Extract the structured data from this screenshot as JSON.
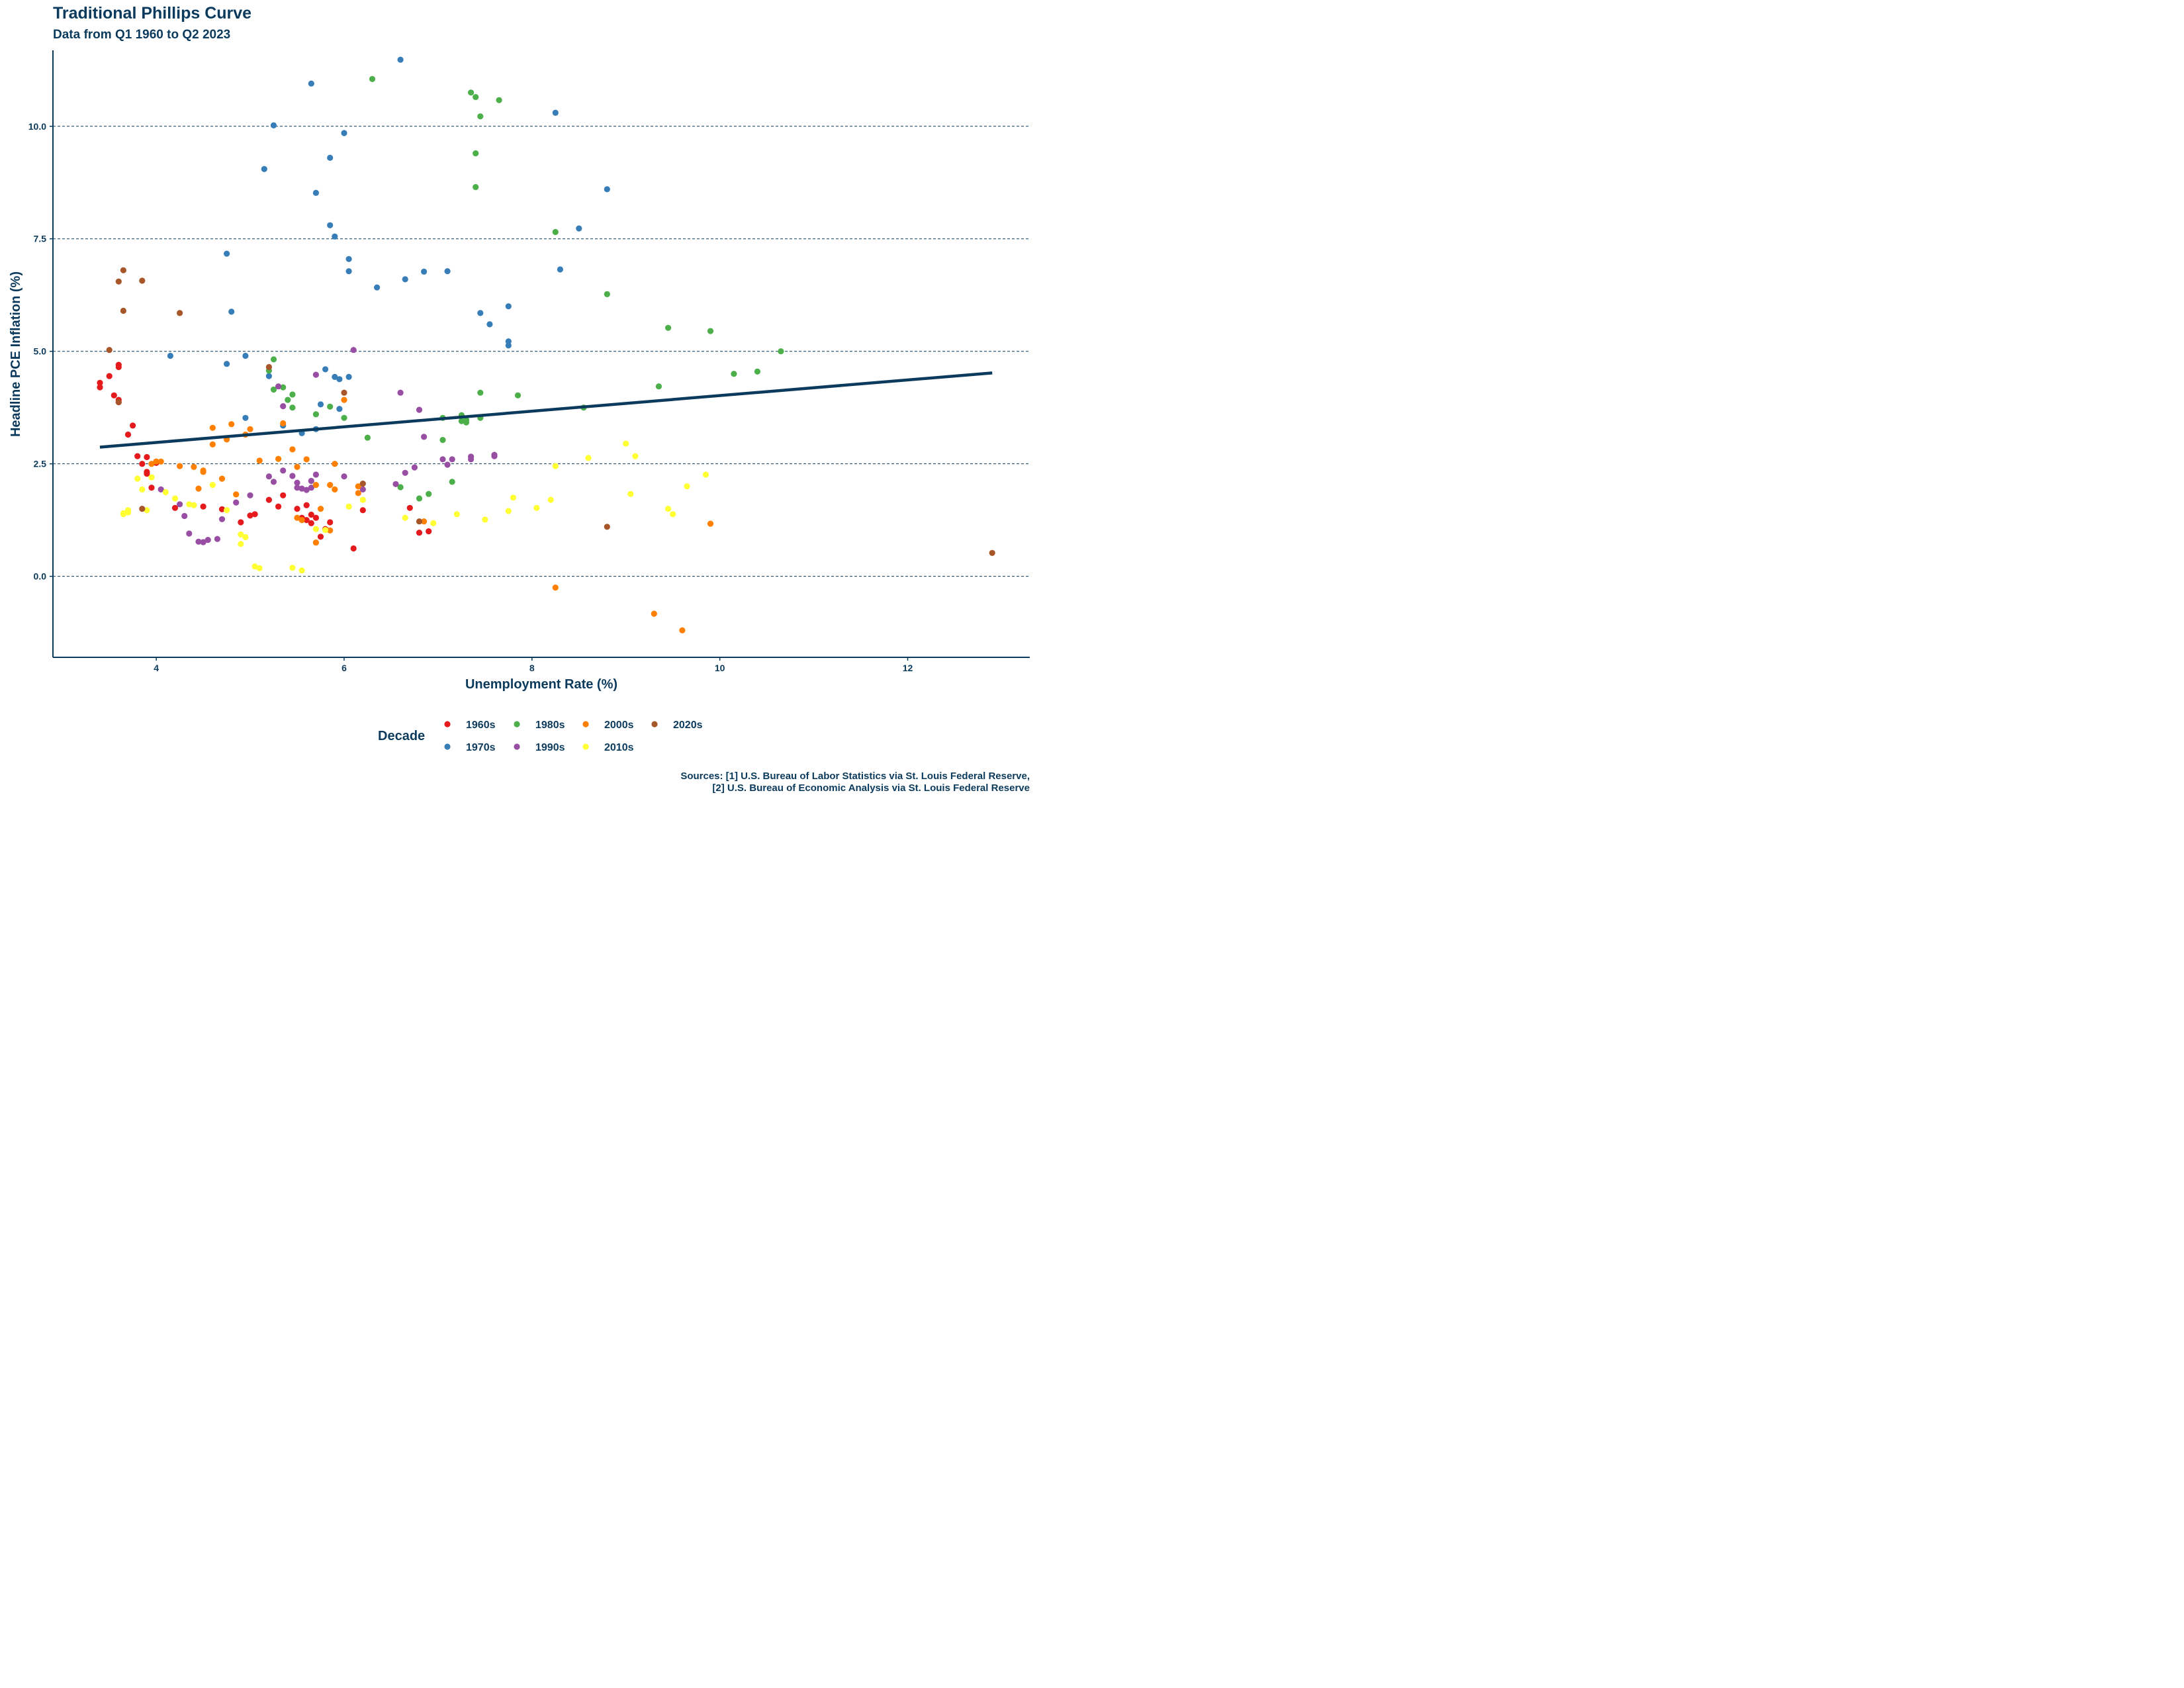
{
  "chart_data": {
    "type": "scatter",
    "title": "Traditional Phillips Curve",
    "subtitle": "Data from Q1 1960 to Q2 2023",
    "xlabel": "Unemployment Rate (%)",
    "ylabel": "Headline PCE Inflation (%)",
    "xlim": [
      2.9,
      13.3
    ],
    "ylim": [
      -1.8,
      12.1
    ],
    "xticks": [
      4,
      6,
      8,
      10,
      12
    ],
    "xtick_labels": [
      "4",
      "6",
      "8",
      "10",
      "12"
    ],
    "yticks": [
      0,
      2.5,
      5,
      7.5,
      10
    ],
    "ytick_labels": [
      "0.0",
      "2.5",
      "5.0",
      "7.5",
      "10.0"
    ],
    "grid": "horizontal dashed at major y ticks",
    "legend": {
      "title": "Decade",
      "position": "bottom"
    },
    "trend_line": {
      "x": [
        3.4,
        12.9
      ],
      "y": [
        2.87,
        4.52
      ],
      "color": "#0b3a5c"
    },
    "caption": [
      "Sources: [1] U.S. Bureau of Labor Statistics via St. Louis Federal Reserve,",
      "[2] U.S. Bureau of Economic Analysis via St. Louis Federal Reserve"
    ],
    "series": [
      {
        "name": "1960s",
        "color": "#e41a1c",
        "points": [
          [
            3.4,
            4.3
          ],
          [
            3.4,
            4.2
          ],
          [
            3.5,
            4.45
          ],
          [
            3.55,
            4.02
          ],
          [
            3.6,
            4.7
          ],
          [
            3.6,
            4.65
          ],
          [
            3.6,
            3.92
          ],
          [
            3.6,
            3.87
          ],
          [
            3.7,
            3.15
          ],
          [
            3.75,
            3.35
          ],
          [
            3.8,
            2.67
          ],
          [
            3.85,
            2.5
          ],
          [
            3.9,
            2.65
          ],
          [
            3.9,
            2.32
          ],
          [
            3.9,
            2.28
          ],
          [
            3.95,
            1.97
          ],
          [
            4.0,
            2.55
          ],
          [
            4.0,
            2.52
          ],
          [
            4.2,
            1.52
          ],
          [
            4.5,
            1.55
          ],
          [
            4.7,
            1.49
          ],
          [
            4.9,
            1.2
          ],
          [
            5.0,
            1.35
          ],
          [
            5.05,
            1.38
          ],
          [
            5.2,
            1.7
          ],
          [
            5.3,
            1.55
          ],
          [
            5.35,
            1.8
          ],
          [
            5.5,
            1.5
          ],
          [
            5.55,
            1.3
          ],
          [
            5.6,
            1.25
          ],
          [
            5.6,
            1.58
          ],
          [
            5.65,
            1.37
          ],
          [
            5.65,
            1.18
          ],
          [
            5.7,
            1.3
          ],
          [
            5.75,
            0.88
          ],
          [
            5.8,
            1.05
          ],
          [
            5.85,
            1.2
          ],
          [
            6.1,
            0.62
          ],
          [
            6.2,
            1.47
          ],
          [
            6.7,
            1.52
          ],
          [
            6.8,
            0.97
          ],
          [
            6.9,
            1.0
          ]
        ]
      },
      {
        "name": "1970s",
        "color": "#377eb8",
        "points": [
          [
            4.15,
            4.9
          ],
          [
            4.75,
            7.17
          ],
          [
            4.75,
            4.72
          ],
          [
            4.8,
            5.88
          ],
          [
            4.95,
            4.9
          ],
          [
            4.95,
            3.52
          ],
          [
            5.15,
            9.05
          ],
          [
            5.2,
            4.45
          ],
          [
            5.25,
            10.02
          ],
          [
            5.35,
            3.35
          ],
          [
            5.55,
            3.18
          ],
          [
            5.65,
            10.95
          ],
          [
            5.7,
            8.52
          ],
          [
            5.7,
            3.27
          ],
          [
            5.75,
            3.82
          ],
          [
            5.8,
            4.6
          ],
          [
            5.85,
            7.8
          ],
          [
            5.85,
            9.3
          ],
          [
            5.9,
            7.55
          ],
          [
            5.9,
            4.43
          ],
          [
            5.95,
            4.38
          ],
          [
            5.95,
            3.72
          ],
          [
            6.0,
            9.85
          ],
          [
            6.05,
            6.78
          ],
          [
            6.05,
            7.05
          ],
          [
            6.05,
            4.43
          ],
          [
            6.35,
            6.42
          ],
          [
            6.6,
            11.48
          ],
          [
            6.65,
            6.6
          ],
          [
            6.85,
            6.77
          ],
          [
            7.1,
            6.78
          ],
          [
            7.45,
            5.85
          ],
          [
            7.55,
            5.6
          ],
          [
            7.75,
            5.22
          ],
          [
            7.75,
            5.13
          ],
          [
            7.75,
            6.0
          ],
          [
            8.25,
            10.3
          ],
          [
            8.3,
            6.82
          ],
          [
            8.5,
            7.73
          ],
          [
            8.8,
            8.6
          ]
        ]
      },
      {
        "name": "1980s",
        "color": "#4daf4a",
        "points": [
          [
            5.2,
            4.57
          ],
          [
            5.25,
            4.82
          ],
          [
            5.25,
            4.15
          ],
          [
            5.35,
            4.2
          ],
          [
            5.4,
            3.92
          ],
          [
            5.45,
            4.04
          ],
          [
            5.45,
            3.75
          ],
          [
            5.7,
            3.6
          ],
          [
            5.85,
            3.77
          ],
          [
            6.0,
            3.52
          ],
          [
            6.25,
            3.08
          ],
          [
            6.3,
            11.05
          ],
          [
            6.6,
            1.98
          ],
          [
            6.8,
            1.73
          ],
          [
            6.9,
            1.83
          ],
          [
            7.05,
            3.03
          ],
          [
            7.05,
            3.52
          ],
          [
            7.15,
            2.1
          ],
          [
            7.25,
            3.45
          ],
          [
            7.25,
            3.58
          ],
          [
            7.3,
            3.47
          ],
          [
            7.3,
            3.42
          ],
          [
            7.35,
            10.75
          ],
          [
            7.4,
            10.65
          ],
          [
            7.4,
            9.4
          ],
          [
            7.4,
            8.65
          ],
          [
            7.45,
            10.22
          ],
          [
            7.45,
            3.52
          ],
          [
            7.45,
            4.08
          ],
          [
            7.65,
            10.58
          ],
          [
            7.85,
            4.02
          ],
          [
            8.25,
            7.65
          ],
          [
            8.55,
            3.75
          ],
          [
            8.8,
            6.27
          ],
          [
            9.35,
            4.22
          ],
          [
            9.45,
            5.52
          ],
          [
            9.9,
            5.45
          ],
          [
            10.15,
            4.5
          ],
          [
            10.4,
            4.55
          ],
          [
            10.65,
            5.0
          ]
        ]
      },
      {
        "name": "1990s",
        "color": "#984ea3",
        "points": [
          [
            4.05,
            1.93
          ],
          [
            4.25,
            1.6
          ],
          [
            4.3,
            1.34
          ],
          [
            4.35,
            0.95
          ],
          [
            4.45,
            0.77
          ],
          [
            4.5,
            0.76
          ],
          [
            4.55,
            0.81
          ],
          [
            4.65,
            0.83
          ],
          [
            4.7,
            1.27
          ],
          [
            4.85,
            1.64
          ],
          [
            5.0,
            1.8
          ],
          [
            5.2,
            2.22
          ],
          [
            5.25,
            2.1
          ],
          [
            5.3,
            4.22
          ],
          [
            5.35,
            2.35
          ],
          [
            5.35,
            3.78
          ],
          [
            5.45,
            2.23
          ],
          [
            5.5,
            2.08
          ],
          [
            5.5,
            1.97
          ],
          [
            5.55,
            1.95
          ],
          [
            5.6,
            1.92
          ],
          [
            5.65,
            2.12
          ],
          [
            5.65,
            1.97
          ],
          [
            5.7,
            2.26
          ],
          [
            5.7,
            4.48
          ],
          [
            6.0,
            2.22
          ],
          [
            6.1,
            5.03
          ],
          [
            6.2,
            1.93
          ],
          [
            6.55,
            2.05
          ],
          [
            6.6,
            4.08
          ],
          [
            6.65,
            2.3
          ],
          [
            6.75,
            2.42
          ],
          [
            6.8,
            3.7
          ],
          [
            6.85,
            3.1
          ],
          [
            7.05,
            2.6
          ],
          [
            7.1,
            2.48
          ],
          [
            7.15,
            2.6
          ],
          [
            7.35,
            2.6
          ],
          [
            7.35,
            2.66
          ],
          [
            7.6,
            2.7
          ],
          [
            7.6,
            2.67
          ]
        ]
      },
      {
        "name": "2000s",
        "color": "#ff7f00",
        "points": [
          [
            3.95,
            2.5
          ],
          [
            4.0,
            2.55
          ],
          [
            4.05,
            2.55
          ],
          [
            4.25,
            2.45
          ],
          [
            4.4,
            2.43
          ],
          [
            4.45,
            1.95
          ],
          [
            4.5,
            2.35
          ],
          [
            4.5,
            2.32
          ],
          [
            4.6,
            3.3
          ],
          [
            4.6,
            2.93
          ],
          [
            4.7,
            2.17
          ],
          [
            4.75,
            3.04
          ],
          [
            4.8,
            3.38
          ],
          [
            4.85,
            1.82
          ],
          [
            4.95,
            3.15
          ],
          [
            5.0,
            3.27
          ],
          [
            5.1,
            2.57
          ],
          [
            5.3,
            2.61
          ],
          [
            5.35,
            3.4
          ],
          [
            5.45,
            2.82
          ],
          [
            5.5,
            2.43
          ],
          [
            5.5,
            1.3
          ],
          [
            5.55,
            1.25
          ],
          [
            5.6,
            2.6
          ],
          [
            5.7,
            2.03
          ],
          [
            5.7,
            0.75
          ],
          [
            5.75,
            1.5
          ],
          [
            5.85,
            1.02
          ],
          [
            5.85,
            2.03
          ],
          [
            5.9,
            1.93
          ],
          [
            5.9,
            2.5
          ],
          [
            6.0,
            3.92
          ],
          [
            6.15,
            1.85
          ],
          [
            6.15,
            2.0
          ],
          [
            6.85,
            1.22
          ],
          [
            8.25,
            -0.25
          ],
          [
            9.3,
            -0.83
          ],
          [
            9.6,
            -1.2
          ],
          [
            9.9,
            1.17
          ]
        ]
      },
      {
        "name": "2010s",
        "color": "#ffff33",
        "points": [
          [
            3.65,
            1.4
          ],
          [
            3.65,
            1.38
          ],
          [
            3.7,
            1.47
          ],
          [
            3.7,
            1.42
          ],
          [
            3.8,
            2.17
          ],
          [
            3.85,
            1.93
          ],
          [
            3.9,
            1.47
          ],
          [
            3.95,
            2.2
          ],
          [
            4.1,
            1.87
          ],
          [
            4.2,
            1.73
          ],
          [
            4.35,
            1.6
          ],
          [
            4.4,
            1.58
          ],
          [
            4.6,
            2.03
          ],
          [
            4.75,
            1.47
          ],
          [
            4.9,
            0.93
          ],
          [
            4.9,
            0.72
          ],
          [
            4.95,
            0.87
          ],
          [
            5.05,
            0.22
          ],
          [
            5.1,
            0.18
          ],
          [
            5.45,
            0.19
          ],
          [
            5.55,
            0.13
          ],
          [
            5.7,
            1.05
          ],
          [
            5.8,
            1.03
          ],
          [
            6.05,
            1.55
          ],
          [
            6.2,
            1.7
          ],
          [
            6.65,
            1.3
          ],
          [
            6.95,
            1.18
          ],
          [
            7.2,
            1.38
          ],
          [
            7.5,
            1.26
          ],
          [
            7.75,
            1.45
          ],
          [
            7.8,
            1.75
          ],
          [
            8.05,
            1.52
          ],
          [
            8.2,
            1.7
          ],
          [
            8.25,
            2.45
          ],
          [
            8.6,
            2.63
          ],
          [
            9.0,
            2.95
          ],
          [
            9.05,
            1.83
          ],
          [
            9.1,
            2.67
          ],
          [
            9.45,
            1.5
          ],
          [
            9.5,
            1.38
          ],
          [
            9.65,
            2.0
          ],
          [
            9.85,
            2.26
          ]
        ]
      },
      {
        "name": "2020s",
        "color": "#a65628",
        "points": [
          [
            3.5,
            5.03
          ],
          [
            3.6,
            6.55
          ],
          [
            3.6,
            3.87
          ],
          [
            3.65,
            6.8
          ],
          [
            3.65,
            5.9
          ],
          [
            3.85,
            6.57
          ],
          [
            3.85,
            1.5
          ],
          [
            4.25,
            5.85
          ],
          [
            5.2,
            4.65
          ],
          [
            6.0,
            4.08
          ],
          [
            6.2,
            2.06
          ],
          [
            6.8,
            1.22
          ],
          [
            8.8,
            1.1
          ],
          [
            12.9,
            0.52
          ]
        ]
      }
    ]
  }
}
